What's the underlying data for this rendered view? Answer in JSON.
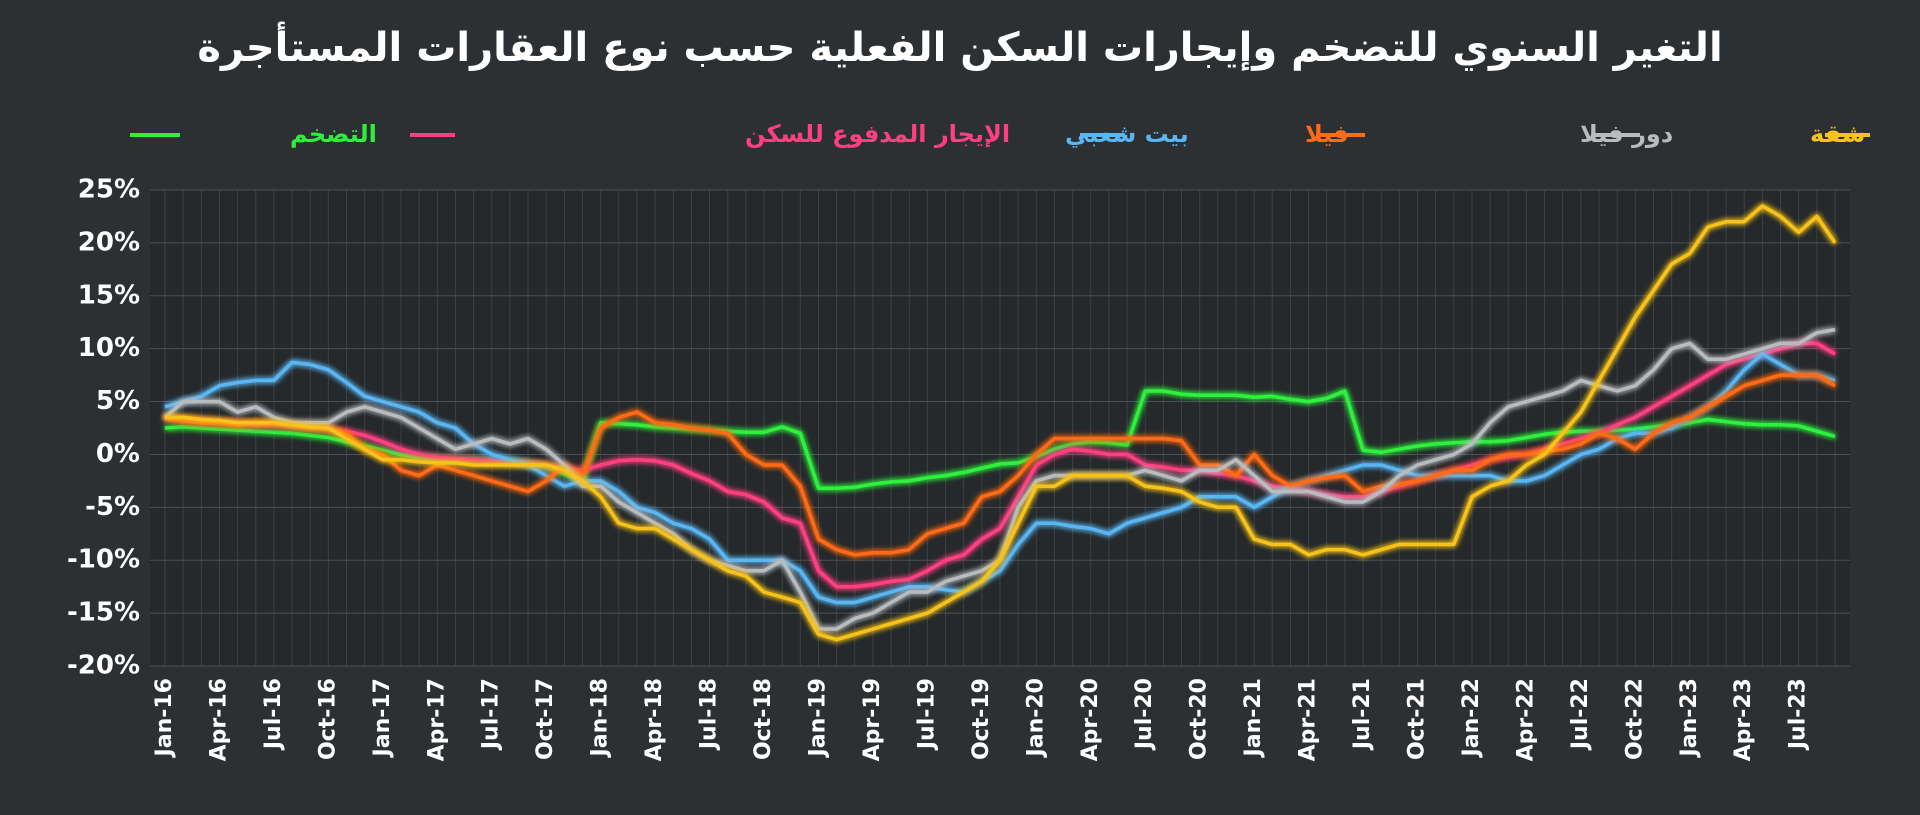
{
  "chart_data": {
    "type": "line",
    "title": "التغير السنوي للتضخم وإيجارات السكن الفعلية حسب نوع العقارات المستأجرة",
    "categories": [
      "Jan-16",
      null,
      null,
      "Apr-16",
      null,
      null,
      "Jul-16",
      null,
      null,
      "Oct-16",
      null,
      null,
      "Jan-17",
      null,
      null,
      "Apr-17",
      null,
      null,
      "Jul-17",
      null,
      null,
      "Oct-17",
      null,
      null,
      "Jan-18",
      null,
      null,
      "Apr-18",
      null,
      null,
      "Jul-18",
      null,
      null,
      "Oct-18",
      null,
      null,
      "Jan-19",
      null,
      null,
      "Apr-19",
      null,
      null,
      "Jul-19",
      null,
      null,
      "Oct-19",
      null,
      null,
      "Jan-20",
      null,
      null,
      "Apr-20",
      null,
      null,
      "Jul-20",
      null,
      null,
      "Oct-20",
      null,
      null,
      "Jan-21",
      null,
      null,
      "Apr-21",
      null,
      null,
      "Jul-21",
      null,
      null,
      "Oct-21",
      null,
      null,
      "Jan-22",
      null,
      null,
      "Apr-22",
      null,
      null,
      "Jul-22",
      null,
      null,
      "Oct-22",
      null,
      null,
      "Jan-23",
      null,
      null,
      "Apr-23",
      null,
      null,
      "Jul-23",
      null,
      null
    ],
    "ylim": [
      -20,
      25
    ],
    "yticks": [
      {
        "value": -20,
        "label": "-20%"
      },
      {
        "value": -15,
        "label": "-15%"
      },
      {
        "value": -10,
        "label": "-10%"
      },
      {
        "value": -5,
        "label": "-5%"
      },
      {
        "value": 0,
        "label": "0%"
      },
      {
        "value": 5,
        "label": "5%"
      },
      {
        "value": 10,
        "label": "10%"
      },
      {
        "value": 15,
        "label": "15%"
      },
      {
        "value": 20,
        "label": "20%"
      },
      {
        "value": 25,
        "label": "25%"
      }
    ],
    "grid": true,
    "series": [
      {
        "name": "التضخم",
        "color": "#2ef03c",
        "values": [
          2.5,
          2.6,
          2.5,
          2.4,
          2.3,
          2.2,
          2.1,
          2.0,
          1.8,
          1.6,
          1.2,
          0.8,
          0.4,
          0.0,
          -0.3,
          -0.4,
          -0.5,
          -0.5,
          -0.6,
          -0.7,
          -0.8,
          -1.2,
          -1.8,
          -2.5,
          3.0,
          2.9,
          2.8,
          2.6,
          2.5,
          2.4,
          2.3,
          2.2,
          2.1,
          2.1,
          2.6,
          2.0,
          -3.2,
          -3.2,
          -3.1,
          -2.8,
          -2.6,
          -2.5,
          -2.2,
          -2.0,
          -1.7,
          -1.3,
          -0.9,
          -0.8,
          -0.2,
          0.5,
          1.0,
          1.2,
          1.1,
          0.9,
          6.0,
          6.0,
          5.7,
          5.6,
          5.6,
          5.6,
          5.4,
          5.5,
          5.2,
          5.0,
          5.3,
          6.0,
          0.4,
          0.2,
          0.5,
          0.8,
          1.0,
          1.1,
          1.2,
          1.2,
          1.3,
          1.6,
          1.9,
          2.1,
          2.2,
          2.2,
          2.3,
          2.4,
          2.6,
          2.8,
          3.0,
          3.3,
          3.1,
          2.9,
          2.8,
          2.8,
          2.7,
          2.2,
          1.7
        ]
      },
      {
        "name": "الإيجار المدفوع للسكن",
        "color": "#ff4080",
        "values": [
          3.5,
          3.3,
          3.2,
          3.0,
          3.0,
          2.8,
          2.8,
          2.7,
          2.6,
          2.4,
          2.2,
          1.8,
          1.2,
          0.5,
          0.0,
          -0.3,
          -0.4,
          -0.5,
          -0.6,
          -0.7,
          -0.8,
          -1.0,
          -1.3,
          -1.5,
          -1.0,
          -0.6,
          -0.5,
          -0.6,
          -1.0,
          -1.8,
          -2.5,
          -3.5,
          -3.8,
          -4.5,
          -6.0,
          -6.5,
          -11.0,
          -12.5,
          -12.5,
          -12.3,
          -12.0,
          -11.8,
          -11.0,
          -10.0,
          -9.5,
          -8.0,
          -7.0,
          -4.0,
          -1.0,
          0.0,
          0.5,
          0.3,
          0.0,
          0.0,
          -1.0,
          -1.2,
          -1.5,
          -1.5,
          -1.8,
          -2.0,
          -2.5,
          -3.0,
          -3.2,
          -3.5,
          -3.8,
          -4.0,
          -4.0,
          -3.5,
          -3.0,
          -2.5,
          -2.0,
          -1.5,
          -1.0,
          -0.5,
          -0.2,
          0.0,
          0.5,
          1.0,
          1.5,
          2.0,
          2.8,
          3.5,
          4.5,
          5.5,
          6.5,
          7.5,
          8.5,
          9.0,
          9.5,
          10.0,
          10.5,
          10.5,
          9.5
        ]
      },
      {
        "name": "بيت شعبي",
        "color": "#5ab6f2",
        "values": [
          4.5,
          5.0,
          5.5,
          6.5,
          6.8,
          7.0,
          7.0,
          8.7,
          8.5,
          8.0,
          6.8,
          5.5,
          5.0,
          4.5,
          4.0,
          3.0,
          2.5,
          1.0,
          0.0,
          -0.5,
          -1.0,
          -2.0,
          -3.0,
          -2.5,
          -2.5,
          -3.5,
          -5.0,
          -5.5,
          -6.5,
          -7.0,
          -8.0,
          -10.0,
          -10.0,
          -10.0,
          -10.0,
          -11.0,
          -13.5,
          -14.0,
          -14.0,
          -13.5,
          -13.0,
          -12.5,
          -12.5,
          -12.8,
          -13.0,
          -12.0,
          -11.0,
          -8.5,
          -6.5,
          -6.5,
          -6.8,
          -7.0,
          -7.5,
          -6.5,
          -6.0,
          -5.5,
          -5.0,
          -4.0,
          -4.0,
          -4.0,
          -5.0,
          -4.0,
          -3.0,
          -2.5,
          -2.0,
          -1.5,
          -1.0,
          -1.0,
          -1.5,
          -2.0,
          -2.0,
          -2.0,
          -2.0,
          -2.0,
          -2.5,
          -2.5,
          -2.0,
          -1.0,
          0.0,
          0.5,
          1.5,
          2.0,
          2.0,
          2.5,
          3.5,
          4.5,
          6.0,
          8.0,
          9.5,
          8.5,
          7.5,
          7.5,
          7.0
        ]
      },
      {
        "name": "فيلا",
        "color": "#ff6a14",
        "values": [
          3.5,
          3.2,
          3.0,
          3.0,
          2.8,
          3.0,
          3.0,
          2.8,
          2.5,
          2.5,
          2.0,
          0.5,
          0.0,
          -1.5,
          -2.0,
          -1.0,
          -1.5,
          -2.0,
          -2.5,
          -3.0,
          -3.5,
          -2.5,
          -1.0,
          -2.0,
          2.5,
          3.5,
          4.0,
          3.0,
          2.8,
          2.5,
          2.3,
          2.0,
          0.0,
          -1.0,
          -1.0,
          -3.0,
          -8.0,
          -9.0,
          -9.5,
          -9.3,
          -9.3,
          -9.0,
          -7.5,
          -7.0,
          -6.5,
          -4.0,
          -3.5,
          -2.0,
          0.0,
          1.5,
          1.5,
          1.5,
          1.5,
          1.5,
          1.5,
          1.5,
          1.3,
          -1.0,
          -1.0,
          -2.0,
          0.0,
          -2.0,
          -3.0,
          -2.5,
          -2.2,
          -2.0,
          -3.5,
          -3.0,
          -2.8,
          -2.5,
          -2.0,
          -1.5,
          -1.5,
          -0.5,
          0.0,
          0.0,
          0.3,
          0.5,
          1.0,
          2.0,
          1.5,
          0.5,
          2.0,
          3.0,
          3.5,
          4.5,
          5.5,
          6.5,
          7.0,
          7.5,
          7.5,
          7.5,
          6.5
        ]
      },
      {
        "name": "دور فيلا",
        "color": "#b8bcbf",
        "values": [
          3.5,
          5.0,
          5.0,
          5.0,
          4.0,
          4.5,
          3.5,
          3.0,
          3.0,
          3.0,
          4.0,
          4.5,
          4.0,
          3.5,
          2.5,
          1.5,
          0.5,
          1.0,
          1.5,
          1.0,
          1.5,
          0.5,
          -1.0,
          -3.0,
          -3.0,
          -4.5,
          -5.5,
          -6.5,
          -7.5,
          -9.0,
          -10.0,
          -10.5,
          -11.0,
          -11.0,
          -10.0,
          -13.0,
          -16.5,
          -16.5,
          -15.5,
          -15.0,
          -14.0,
          -13.0,
          -13.0,
          -12.0,
          -11.5,
          -11.0,
          -10.0,
          -5.0,
          -2.5,
          -2.0,
          -2.0,
          -2.0,
          -2.0,
          -2.0,
          -1.5,
          -2.0,
          -2.5,
          -1.5,
          -1.5,
          -0.5,
          -2.0,
          -3.5,
          -3.5,
          -3.5,
          -4.0,
          -4.5,
          -4.5,
          -3.5,
          -2.0,
          -1.0,
          -0.5,
          0.0,
          1.0,
          3.0,
          4.5,
          5.0,
          5.5,
          6.0,
          7.0,
          6.5,
          6.0,
          6.5,
          8.0,
          10.0,
          10.5,
          9.0,
          9.0,
          9.5,
          10.0,
          10.5,
          10.5,
          11.5,
          11.8
        ]
      },
      {
        "name": "شقة",
        "color": "#f7c21a",
        "values": [
          3.5,
          3.5,
          3.3,
          3.2,
          3.0,
          3.0,
          3.0,
          2.8,
          2.6,
          2.5,
          1.5,
          0.5,
          -0.5,
          -0.5,
          -0.7,
          -0.8,
          -0.8,
          -1.0,
          -1.0,
          -1.0,
          -1.0,
          -1.0,
          -1.5,
          -2.5,
          -4.0,
          -6.5,
          -7.0,
          -7.0,
          -8.0,
          -9.0,
          -10.0,
          -11.0,
          -11.5,
          -13.0,
          -13.5,
          -14.0,
          -17.0,
          -17.5,
          -17.0,
          -16.5,
          -16.0,
          -15.5,
          -15.0,
          -14.0,
          -13.0,
          -12.0,
          -10.0,
          -6.5,
          -3.0,
          -3.0,
          -2.0,
          -2.0,
          -2.0,
          -2.0,
          -3.0,
          -3.2,
          -3.5,
          -4.5,
          -5.0,
          -5.0,
          -8.0,
          -8.5,
          -8.5,
          -9.5,
          -9.0,
          -9.0,
          -9.5,
          -9.0,
          -8.5,
          -8.5,
          -8.5,
          -8.5,
          -4.0,
          -3.0,
          -2.5,
          -1.0,
          0.0,
          2.0,
          4.0,
          7.0,
          10.0,
          13.0,
          15.5,
          18.0,
          19.0,
          21.5,
          22.0,
          22.0,
          23.5,
          22.5,
          21.0,
          22.5,
          20.0
        ]
      }
    ]
  }
}
